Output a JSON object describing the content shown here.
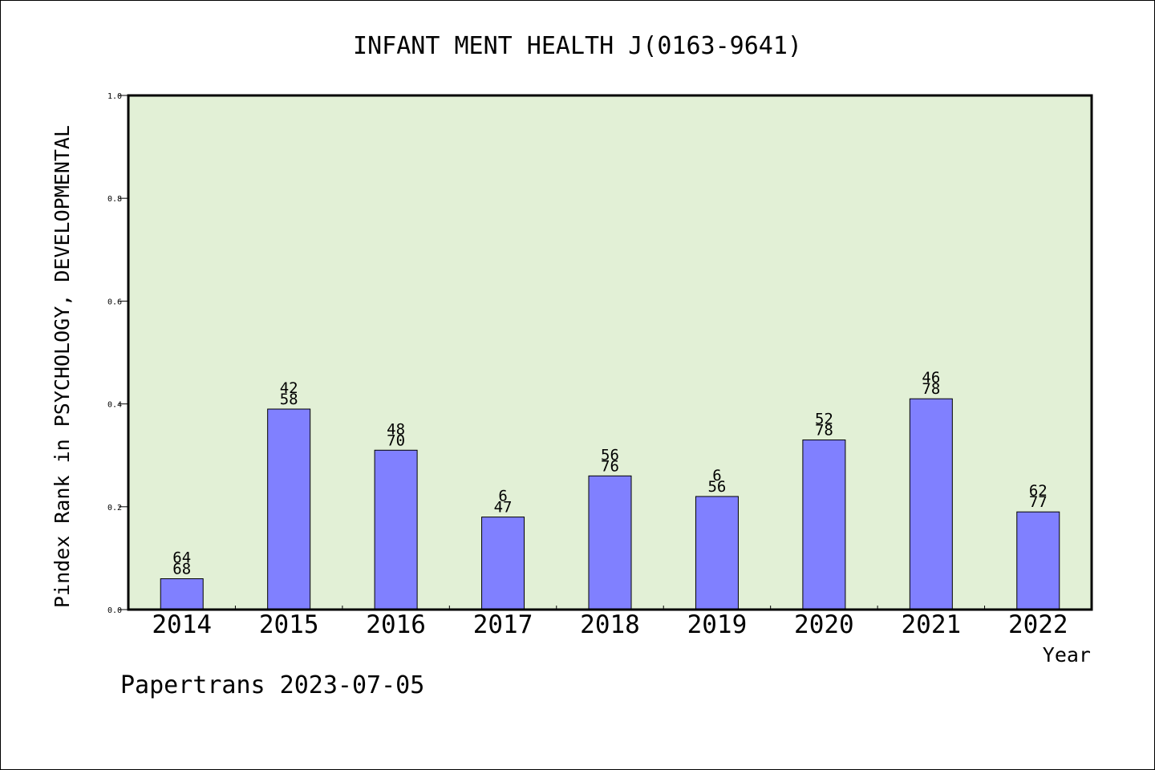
{
  "chart_data": {
    "type": "bar",
    "title": "INFANT MENT HEALTH J(0163-9641)",
    "xlabel": "Year",
    "ylabel": "Pindex Rank in PSYCHOLOGY, DEVELOPMENTAL",
    "footer": "Papertrans 2023-07-05",
    "ylim": [
      0,
      1.0
    ],
    "yticks": [
      "0.0",
      "0.2",
      "0.4",
      "0.6",
      "0.8",
      "1.0"
    ],
    "categories": [
      "2014",
      "2015",
      "2016",
      "2017",
      "2018",
      "2019",
      "2020",
      "2021",
      "2022"
    ],
    "values": [
      0.06,
      0.39,
      0.31,
      0.18,
      0.26,
      0.22,
      0.33,
      0.41,
      0.19
    ],
    "labels_top": [
      "64",
      "42",
      "48",
      "6",
      "56",
      "6",
      "52",
      "46",
      "62"
    ],
    "labels_bottom": [
      "68",
      "58",
      "70",
      "47",
      "76",
      "56",
      "78",
      "78",
      "77"
    ],
    "colors": {
      "plot_background": "#e2f0d6",
      "bar_fill": "#8080ff",
      "bar_stroke": "#000000"
    },
    "grid": false,
    "legend": "none"
  }
}
